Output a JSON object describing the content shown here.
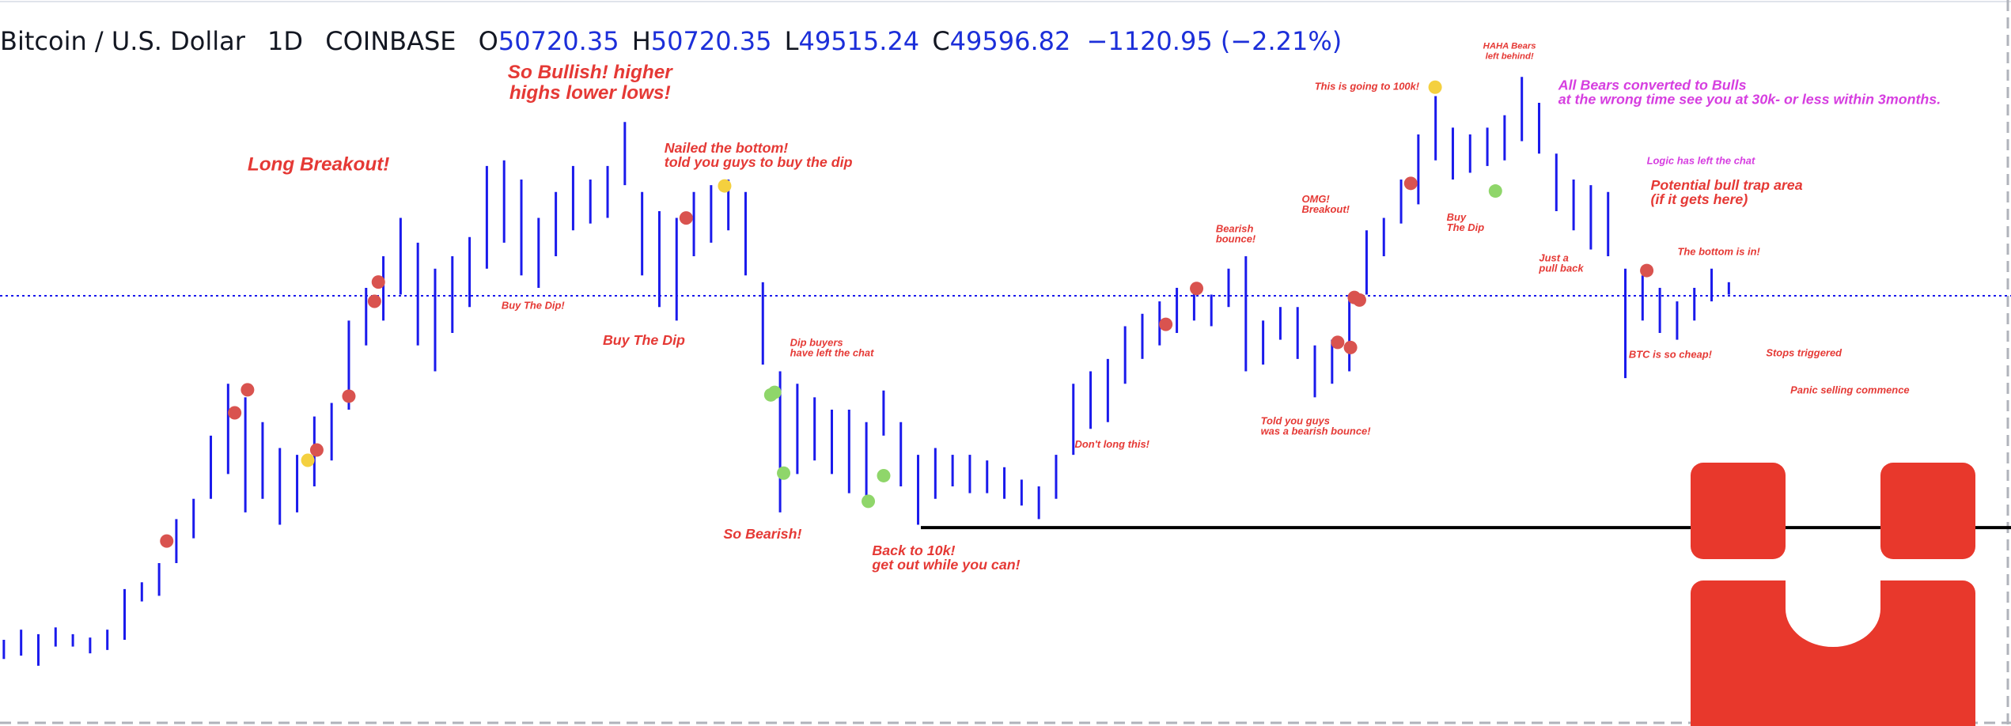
{
  "chart_data": {
    "type": "ohlc",
    "symbol": "Bitcoin / U.S. Dollar",
    "interval": "1D",
    "exchange": "COINBASE",
    "field_letters": [
      "O",
      "H",
      "L",
      "C"
    ],
    "open": 50720.35,
    "high_value": 50720.35,
    "low_value": 49515.24,
    "close": 49596.82,
    "change_label": "−1120.95 (−2.21%)",
    "color": "#1a1aec",
    "header_value_color": "#1c2fd9",
    "ylim": [
      11460,
      75815
    ],
    "support_level": 29050,
    "high": [
      19100,
      20000,
      19600,
      20200,
      19600,
      19300,
      20000,
      23600,
      24200,
      25900,
      29800,
      31600,
      37200,
      41800,
      40600,
      38400,
      36100,
      35500,
      38900,
      40100,
      47400,
      50300,
      53100,
      56500,
      54300,
      52000,
      53100,
      54800,
      61100,
      61600,
      59900,
      56500,
      58800,
      61100,
      59900,
      61100,
      65000,
      58800,
      57100,
      56500,
      58800,
      59400,
      59900,
      58800,
      50800,
      42900,
      41800,
      40600,
      39500,
      39500,
      38400,
      41200,
      38400,
      35500,
      36100,
      35500,
      35500,
      35000,
      34400,
      33300,
      32700,
      35500,
      41800,
      42900,
      44000,
      46900,
      48000,
      49100,
      50300,
      50600,
      49700,
      52000,
      53100,
      47400,
      48600,
      48600,
      45200,
      45700,
      49700,
      55400,
      56500,
      59900,
      63900,
      67300,
      64500,
      63900,
      64500,
      65600,
      69000,
      66700,
      62200,
      59900,
      59400,
      58800,
      52000,
      51400,
      50300,
      49100,
      50300,
      52000,
      50800
    ],
    "low": [
      17400,
      17700,
      16800,
      18500,
      18500,
      17900,
      18200,
      19100,
      22500,
      23000,
      25900,
      28100,
      31600,
      33800,
      30400,
      31600,
      29300,
      30400,
      32700,
      35000,
      39500,
      45200,
      47400,
      49700,
      45200,
      42900,
      46300,
      48600,
      52000,
      54300,
      51400,
      50300,
      53100,
      55400,
      56000,
      56500,
      59400,
      51400,
      48600,
      47400,
      53100,
      54300,
      55400,
      51400,
      43500,
      30400,
      33800,
      35000,
      33800,
      32100,
      31000,
      37200,
      32700,
      29300,
      31600,
      32700,
      32100,
      32100,
      31600,
      31000,
      29800,
      31600,
      35500,
      37800,
      38400,
      41800,
      44000,
      45200,
      46300,
      47400,
      46900,
      48600,
      42900,
      43500,
      45700,
      44000,
      40600,
      41800,
      42900,
      49700,
      53100,
      56000,
      57700,
      61600,
      59900,
      60500,
      61100,
      61600,
      63300,
      62200,
      57100,
      55400,
      53700,
      53100,
      42300,
      47400,
      46300,
      45700,
      47400,
      49100,
      49700
    ],
    "annotations": [
      {
        "lines": [
          "Long Breakout!"
        ],
        "color": "#e53935"
      },
      {
        "lines": [
          "So Bullish! higher",
          "highs lower lows!"
        ],
        "color": "#e53935"
      },
      {
        "lines": [
          "Nailed the bottom!",
          "told you guys to buy the dip"
        ],
        "color": "#e53935"
      },
      {
        "lines": [
          "Buy The Dip!"
        ],
        "color": "#e53935"
      },
      {
        "lines": [
          "Buy The Dip"
        ],
        "color": "#e53935"
      },
      {
        "lines": [
          "Dip buyers",
          "have left the chat"
        ],
        "color": "#e53935"
      },
      {
        "lines": [
          "So Bearish!"
        ],
        "color": "#e53935"
      },
      {
        "lines": [
          "Back to 10k!",
          "get out while you can!"
        ],
        "color": "#e53935"
      },
      {
        "lines": [
          "Don't long this!"
        ],
        "color": "#e53935"
      },
      {
        "lines": [
          "Bearish",
          "bounce!"
        ],
        "color": "#e53935"
      },
      {
        "lines": [
          "Told you guys",
          "was a bearish bounce!"
        ],
        "color": "#e53935"
      },
      {
        "lines": [
          "OMG!",
          "Breakout!"
        ],
        "color": "#e53935"
      },
      {
        "lines": [
          "This is going to 100k!"
        ],
        "color": "#e53935"
      },
      {
        "lines": [
          "HAHA Bears",
          "left behind!"
        ],
        "color": "#e53935"
      },
      {
        "lines": [
          "Buy",
          "The Dip"
        ],
        "color": "#e53935"
      },
      {
        "lines": [
          "All Bears converted to Bulls",
          "at the wrong time see you at 30k- or less within 3months."
        ],
        "color": "#d63ee0"
      },
      {
        "lines": [
          "Logic has left the chat"
        ],
        "color": "#d63ee0"
      },
      {
        "lines": [
          "Potential bull trap area",
          "(if it gets here)"
        ],
        "color": "#e53935"
      },
      {
        "lines": [
          "The bottom is in!"
        ],
        "color": "#e53935"
      },
      {
        "lines": [
          "Just a",
          "pull back"
        ],
        "color": "#e53935"
      },
      {
        "lines": [
          "BTC is so cheap!"
        ],
        "color": "#e53935"
      },
      {
        "lines": [
          "Stops triggered"
        ],
        "color": "#e53935"
      },
      {
        "lines": [
          "Panic selling commence"
        ],
        "color": "#e53935"
      }
    ]
  }
}
